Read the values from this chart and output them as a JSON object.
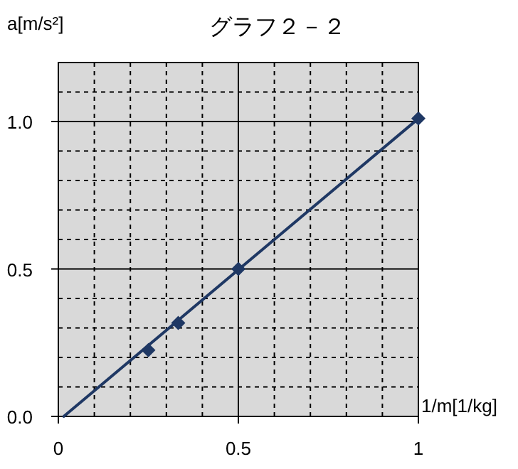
{
  "chart_data": {
    "type": "scatter",
    "title": "グラフ２－２",
    "xlabel": "1/m[1/kg]",
    "ylabel": "a[m/s²]",
    "xlim": [
      0,
      1
    ],
    "ylim": [
      0,
      1.2
    ],
    "xticks": [
      0,
      {
        "value": 0.1,
        "label": null
      },
      {
        "value": 0.2,
        "label": null
      },
      {
        "value": 0.3,
        "label": null
      },
      {
        "value": 0.4,
        "label": null
      },
      0.5,
      {
        "value": 0.6,
        "label": null
      },
      {
        "value": 0.7,
        "label": null
      },
      {
        "value": 0.8,
        "label": null
      },
      {
        "value": 0.9,
        "label": null
      },
      1
    ],
    "yticks": [
      {
        "value": 0,
        "label": "0.0"
      },
      {
        "value": 0.1,
        "label": null
      },
      {
        "value": 0.2,
        "label": null
      },
      {
        "value": 0.3,
        "label": null
      },
      {
        "value": 0.4,
        "label": null
      },
      0.5,
      {
        "value": 0.6,
        "label": null
      },
      {
        "value": 0.7,
        "label": null
      },
      {
        "value": 0.8,
        "label": null
      },
      {
        "value": 0.9,
        "label": null
      },
      {
        "value": 1,
        "label": "1.0"
      },
      {
        "value": 1.1,
        "label": null
      },
      {
        "value": 1.2,
        "label": null
      }
    ],
    "grid": true,
    "series": [
      {
        "x": [
          0.25,
          0.333,
          0.5,
          1
        ],
        "values": [
          0.225,
          0.317,
          0.5,
          1.01
        ],
        "color": "#1f3864",
        "marker": "diamond"
      },
      {
        "type": "line",
        "x": [
          0.015,
          1
        ],
        "values": [
          0,
          1.01
        ],
        "color": "#1f3864",
        "marker": "none",
        "line_style": "solid"
      }
    ]
  }
}
